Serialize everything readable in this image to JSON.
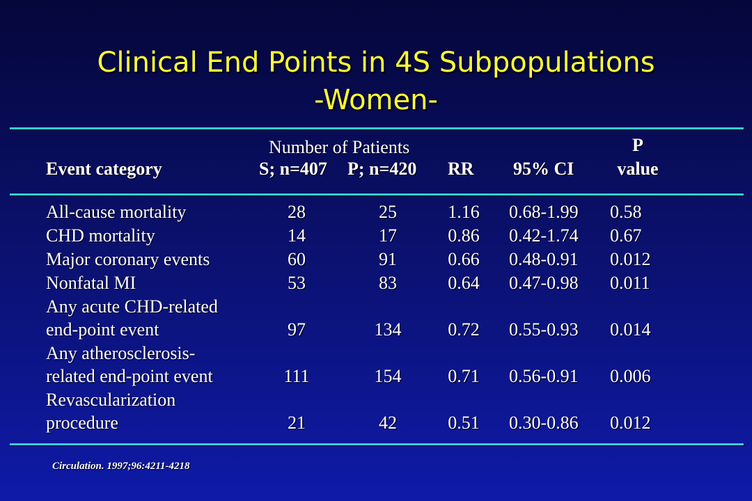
{
  "title": {
    "line1": "Clinical End Points in 4S Subpopulations",
    "line2": "-Women-"
  },
  "header": {
    "group_label": "Number  of Patients",
    "event_category": "Event category",
    "s_group": "S; n=407",
    "p_group": "P; n=420",
    "rr": "RR",
    "ci": "95% CI",
    "p_line1": "P",
    "p_line2": "value"
  },
  "rows": [
    {
      "label1": "All-cause mortality",
      "label2": "",
      "s": "28",
      "p": "25",
      "rr": "1.16",
      "ci": "0.68-1.99",
      "pval": "0.58"
    },
    {
      "label1": "CHD mortality",
      "label2": "",
      "s": "14",
      "p": "17",
      "rr": "0.86",
      "ci": "0.42-1.74",
      "pval": "0.67"
    },
    {
      "label1": "Major coronary events",
      "label2": "",
      "s": "60",
      "p": "91",
      "rr": "0.66",
      "ci": "0.48-0.91",
      "pval": "0.012"
    },
    {
      "label1": "Nonfatal MI",
      "label2": "",
      "s": "53",
      "p": "83",
      "rr": "0.64",
      "ci": "0.47-0.98",
      "pval": "0.011"
    },
    {
      "label1": "Any acute CHD-related",
      "label2": "end-point event",
      "s": "97",
      "p": "134",
      "rr": "0.72",
      "ci": "0.55-0.93",
      "pval": "0.014"
    },
    {
      "label1": "Any atherosclerosis-",
      "label2": "related end-point event",
      "s": "111",
      "p": "154",
      "rr": "0.71",
      "ci": "0.56-0.91",
      "pval": "0.006"
    },
    {
      "label1": "Revascularization",
      "label2": "procedure",
      "s": "21",
      "p": "42",
      "rr": "0.51",
      "ci": "0.30-0.86",
      "pval": "0.012"
    }
  ],
  "citation": "Circulation. 1997;96:4211-4218",
  "colors": {
    "title": "#ffff33",
    "rule": "#2fd0cf",
    "text": "#ffffff"
  }
}
